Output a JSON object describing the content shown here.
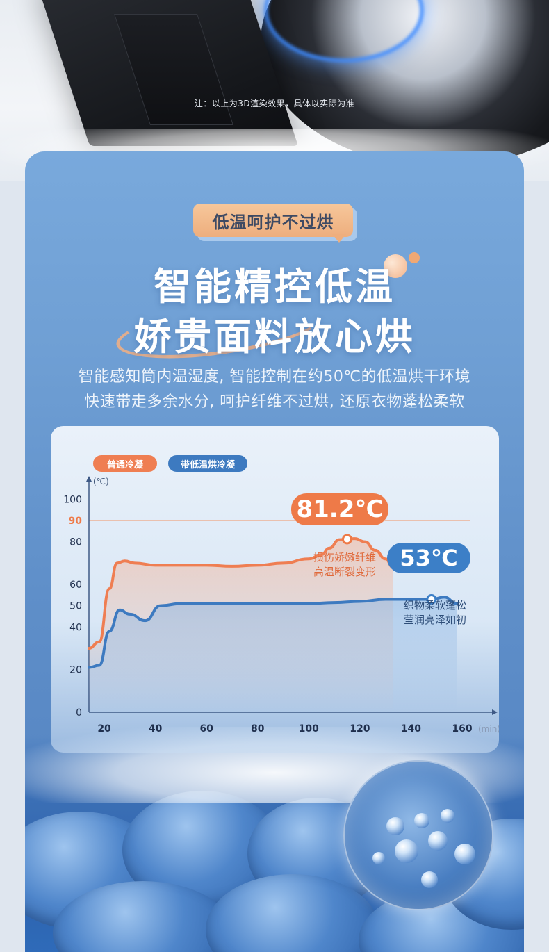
{
  "render_note": "注：以上为3D渲染效果，具体以实际为准",
  "tag_label": "低温呵护不过烘",
  "headline": {
    "line1": "智能精控低温",
    "line2": "娇贵面料放心烘"
  },
  "description": {
    "line1": "智能感知筒内温湿度, 智能控制在约50℃的低温烘干环境",
    "line2": "快速带走多余水分, 呵护纤维不过烘, 还原衣物蓬松柔软"
  },
  "colors": {
    "orange": "#ee7a48",
    "blue": "#3c7fc7",
    "card_top": "#79a9dc",
    "card_bottom": "#4f7fbf"
  },
  "callouts": {
    "orange_value": "81.2℃",
    "orange_note": [
      "损伤娇嫩纤维",
      "高温断裂变形"
    ],
    "blue_value": "53℃",
    "blue_note": [
      "织物柔软蓬松",
      "莹润亮泽如初"
    ]
  },
  "chart_data": {
    "type": "line",
    "y_unit": "(℃)",
    "x_unit": "(min)",
    "y_ticks": [
      0,
      20,
      40,
      50,
      60,
      80,
      90,
      100
    ],
    "x_ticks": [
      20,
      40,
      60,
      80,
      100,
      120,
      140,
      160
    ],
    "reference_line": {
      "value": 90,
      "label": "90"
    },
    "series": [
      {
        "name": "普通冷凝",
        "color": "#ef7e52",
        "x": [
          14,
          18,
          22,
          25,
          28,
          32,
          40,
          50,
          60,
          70,
          80,
          90,
          100,
          105,
          108,
          112,
          115,
          118,
          122,
          126,
          130,
          133
        ],
        "y": [
          30,
          33,
          58,
          70,
          71,
          70,
          69,
          69,
          69,
          68.5,
          69,
          70,
          72,
          74,
          77,
          81,
          81.2,
          81.5,
          80,
          76,
          72,
          68
        ]
      },
      {
        "name": "带低温烘冷凝",
        "color": "#3d7ac0",
        "x": [
          14,
          18,
          22,
          26,
          30,
          36,
          42,
          50,
          60,
          70,
          80,
          90,
          100,
          110,
          120,
          130,
          140,
          148,
          153,
          158
        ],
        "y": [
          21,
          22,
          38,
          48,
          46,
          43,
          50,
          51,
          51,
          51,
          51,
          51,
          51,
          51.5,
          52,
          53,
          53,
          53,
          54,
          51
        ]
      }
    ],
    "xlim": [
      14,
      163
    ],
    "ylim": [
      0,
      105
    ]
  }
}
